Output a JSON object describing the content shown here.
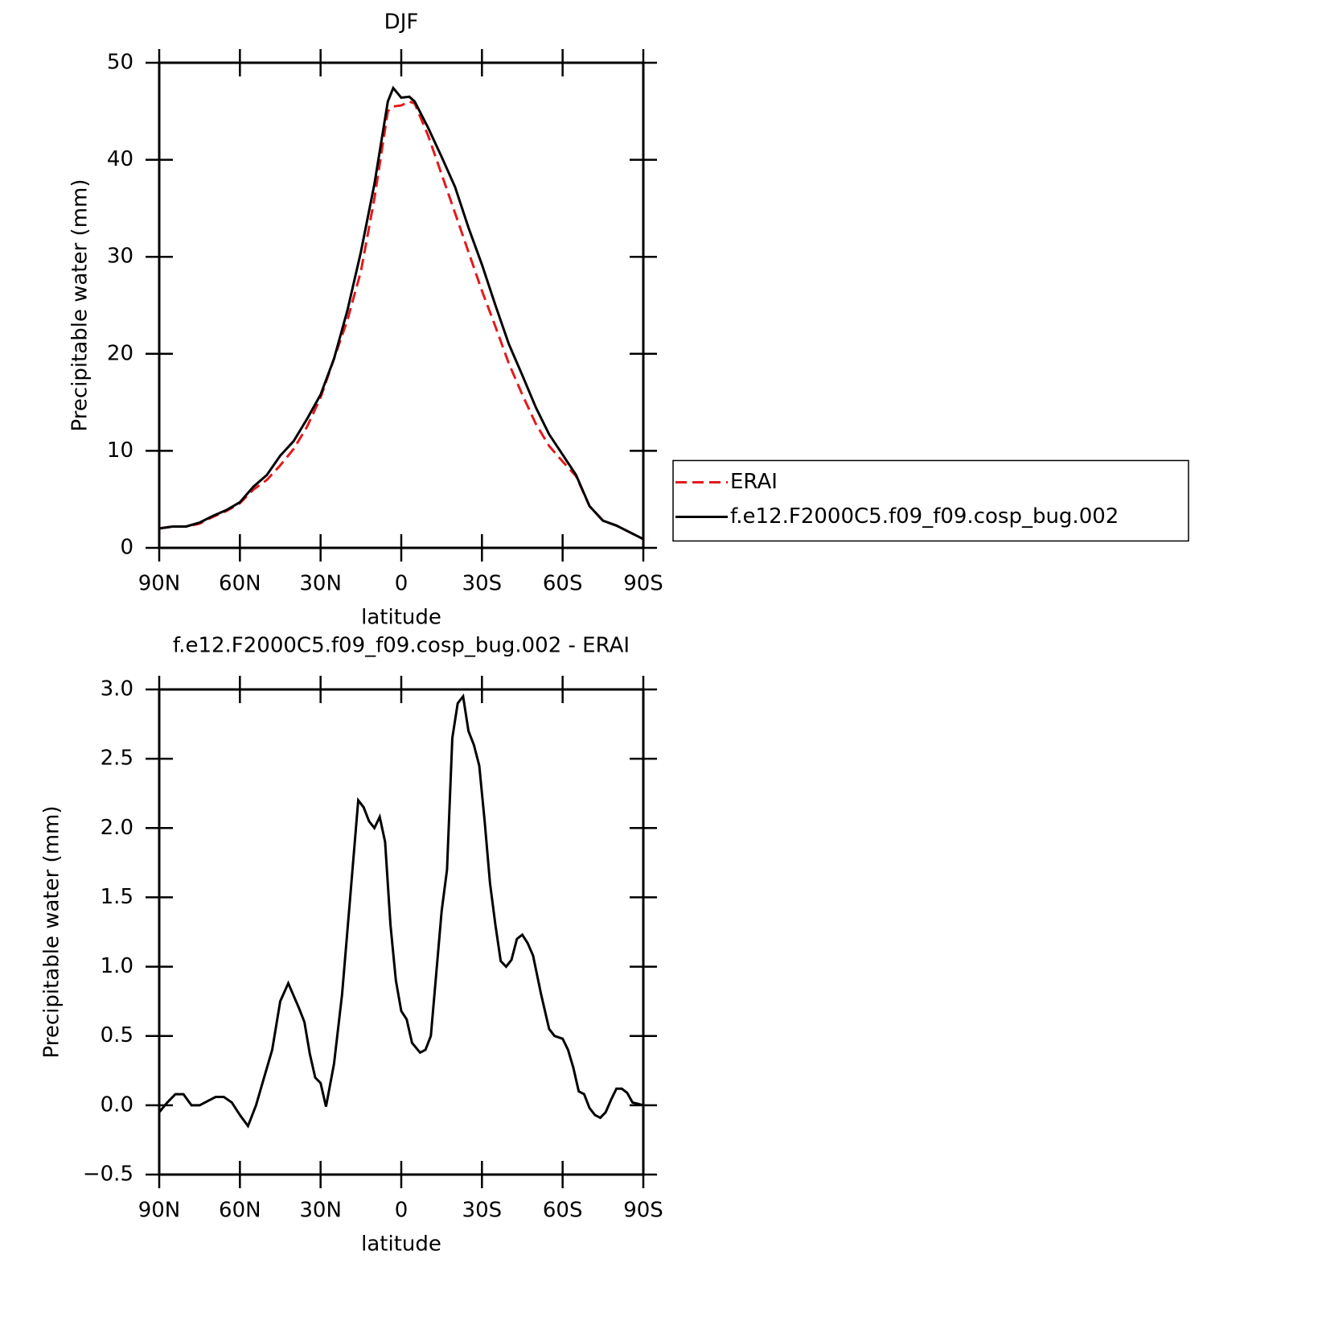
{
  "chart_data": [
    {
      "type": "line",
      "title": "DJF",
      "xlabel": "latitude",
      "ylabel": "Precipitable water (mm)",
      "x": [
        90,
        85,
        80,
        75,
        70,
        65,
        60,
        55,
        50,
        45,
        40,
        35,
        30,
        25,
        20,
        15,
        10,
        5,
        3,
        0,
        -3,
        -5,
        -10,
        -15,
        -20,
        -25,
        -30,
        -35,
        -40,
        -45,
        -50,
        -55,
        -60,
        -65,
        -70,
        -75,
        -80,
        -85,
        -90
      ],
      "series": [
        {
          "name": "ERAI",
          "color": "#e41a1c",
          "dash": true,
          "values": [
            2.0,
            2.2,
            2.2,
            2.5,
            3.2,
            3.8,
            4.6,
            6.0,
            7.0,
            8.5,
            10.2,
            12.5,
            15.5,
            19.5,
            23.5,
            28.5,
            36.0,
            45.0,
            45.5,
            45.6,
            46.0,
            45.8,
            42.5,
            38.5,
            34.5,
            30.5,
            26.5,
            22.8,
            19.0,
            15.8,
            12.8,
            10.5,
            8.9,
            7.4,
            4.3,
            2.8,
            2.3,
            1.6,
            0.9
          ]
        },
        {
          "name": "f.e12.F2000C5.f09_f09.cosp_bug.002",
          "color": "#000000",
          "dash": false,
          "values": [
            2.0,
            2.2,
            2.2,
            2.6,
            3.3,
            3.9,
            4.7,
            6.3,
            7.5,
            9.5,
            11.0,
            13.3,
            15.8,
            19.5,
            24.5,
            30.5,
            37.5,
            46.0,
            47.4,
            46.4,
            46.5,
            46.0,
            43.3,
            40.3,
            37.2,
            33.0,
            29.2,
            25.0,
            21.0,
            17.8,
            14.5,
            11.7,
            9.6,
            7.5,
            4.3,
            2.8,
            2.3,
            1.6,
            0.9
          ]
        }
      ],
      "xlim": [
        90,
        -90
      ],
      "xticks": [
        {
          "value": 90,
          "label": "90N"
        },
        {
          "value": 60,
          "label": "60N"
        },
        {
          "value": 30,
          "label": "30N"
        },
        0,
        {
          "value": -30,
          "label": "30S"
        },
        {
          "value": -60,
          "label": "60S"
        },
        {
          "value": -90,
          "label": "90S"
        }
      ],
      "ylim": [
        0,
        50
      ],
      "yticks": [
        0,
        10,
        20,
        30,
        40,
        50
      ],
      "legend": "right"
    },
    {
      "type": "line",
      "title": "f.e12.F2000C5.f09_f09.cosp_bug.002 - ERAI",
      "xlabel": "latitude",
      "ylabel": "Precipitable water (mm)",
      "x": [
        90,
        87,
        84,
        81,
        78,
        75,
        72,
        69,
        66,
        63,
        60,
        57,
        54,
        51,
        48,
        45,
        42,
        40,
        38,
        36,
        34,
        32,
        30,
        28,
        25,
        22,
        19,
        16,
        14,
        12,
        10,
        8,
        6,
        4,
        2,
        0,
        -2,
        -4,
        -7,
        -9,
        -11,
        -13,
        -15,
        -17,
        -19,
        -21,
        -23,
        -25,
        -27,
        -29,
        -31,
        -33,
        -35,
        -37,
        -39,
        -41,
        -43,
        -45,
        -47,
        -49,
        -52,
        -55,
        -57,
        -60,
        -62,
        -64,
        -66,
        -68,
        -70,
        -72,
        -74,
        -76,
        -78,
        -80,
        -82,
        -84,
        -86,
        -88,
        -90
      ],
      "values": [
        -0.05,
        0.02,
        0.08,
        0.08,
        0.0,
        0.0,
        0.03,
        0.06,
        0.06,
        0.02,
        -0.07,
        -0.15,
        0.0,
        0.2,
        0.4,
        0.75,
        0.88,
        0.79,
        0.7,
        0.6,
        0.37,
        0.2,
        0.16,
        -0.01,
        0.3,
        0.8,
        1.5,
        2.2,
        2.15,
        2.05,
        2.0,
        2.08,
        1.9,
        1.3,
        0.9,
        0.68,
        0.62,
        0.45,
        0.38,
        0.4,
        0.5,
        0.95,
        1.4,
        1.7,
        2.65,
        2.9,
        2.95,
        2.7,
        2.6,
        2.45,
        2.05,
        1.6,
        1.3,
        1.04,
        1.0,
        1.05,
        1.2,
        1.23,
        1.17,
        1.08,
        0.8,
        0.55,
        0.5,
        0.48,
        0.4,
        0.27,
        0.1,
        0.08,
        -0.02,
        -0.07,
        -0.09,
        -0.05,
        0.04,
        0.12,
        0.12,
        0.09,
        0.02,
        0.01,
        0.0
      ],
      "color": "#000000",
      "xlim": [
        90,
        -90
      ],
      "xticks": [
        {
          "value": 90,
          "label": "90N"
        },
        {
          "value": 60,
          "label": "60N"
        },
        {
          "value": 30,
          "label": "30N"
        },
        0,
        {
          "value": -30,
          "label": "30S"
        },
        {
          "value": -60,
          "label": "60S"
        },
        {
          "value": -90,
          "label": "90S"
        }
      ],
      "ylim": [
        -0.5,
        3.0
      ],
      "yticks": [
        {
          "value": -0.5,
          "label": "−0.5"
        },
        {
          "value": 0,
          "label": "0.0"
        },
        0.5,
        {
          "value": 1,
          "label": "1.0"
        },
        1.5,
        {
          "value": 2,
          "label": "2.0"
        },
        2.5,
        {
          "value": 3,
          "label": "3.0"
        }
      ]
    }
  ]
}
